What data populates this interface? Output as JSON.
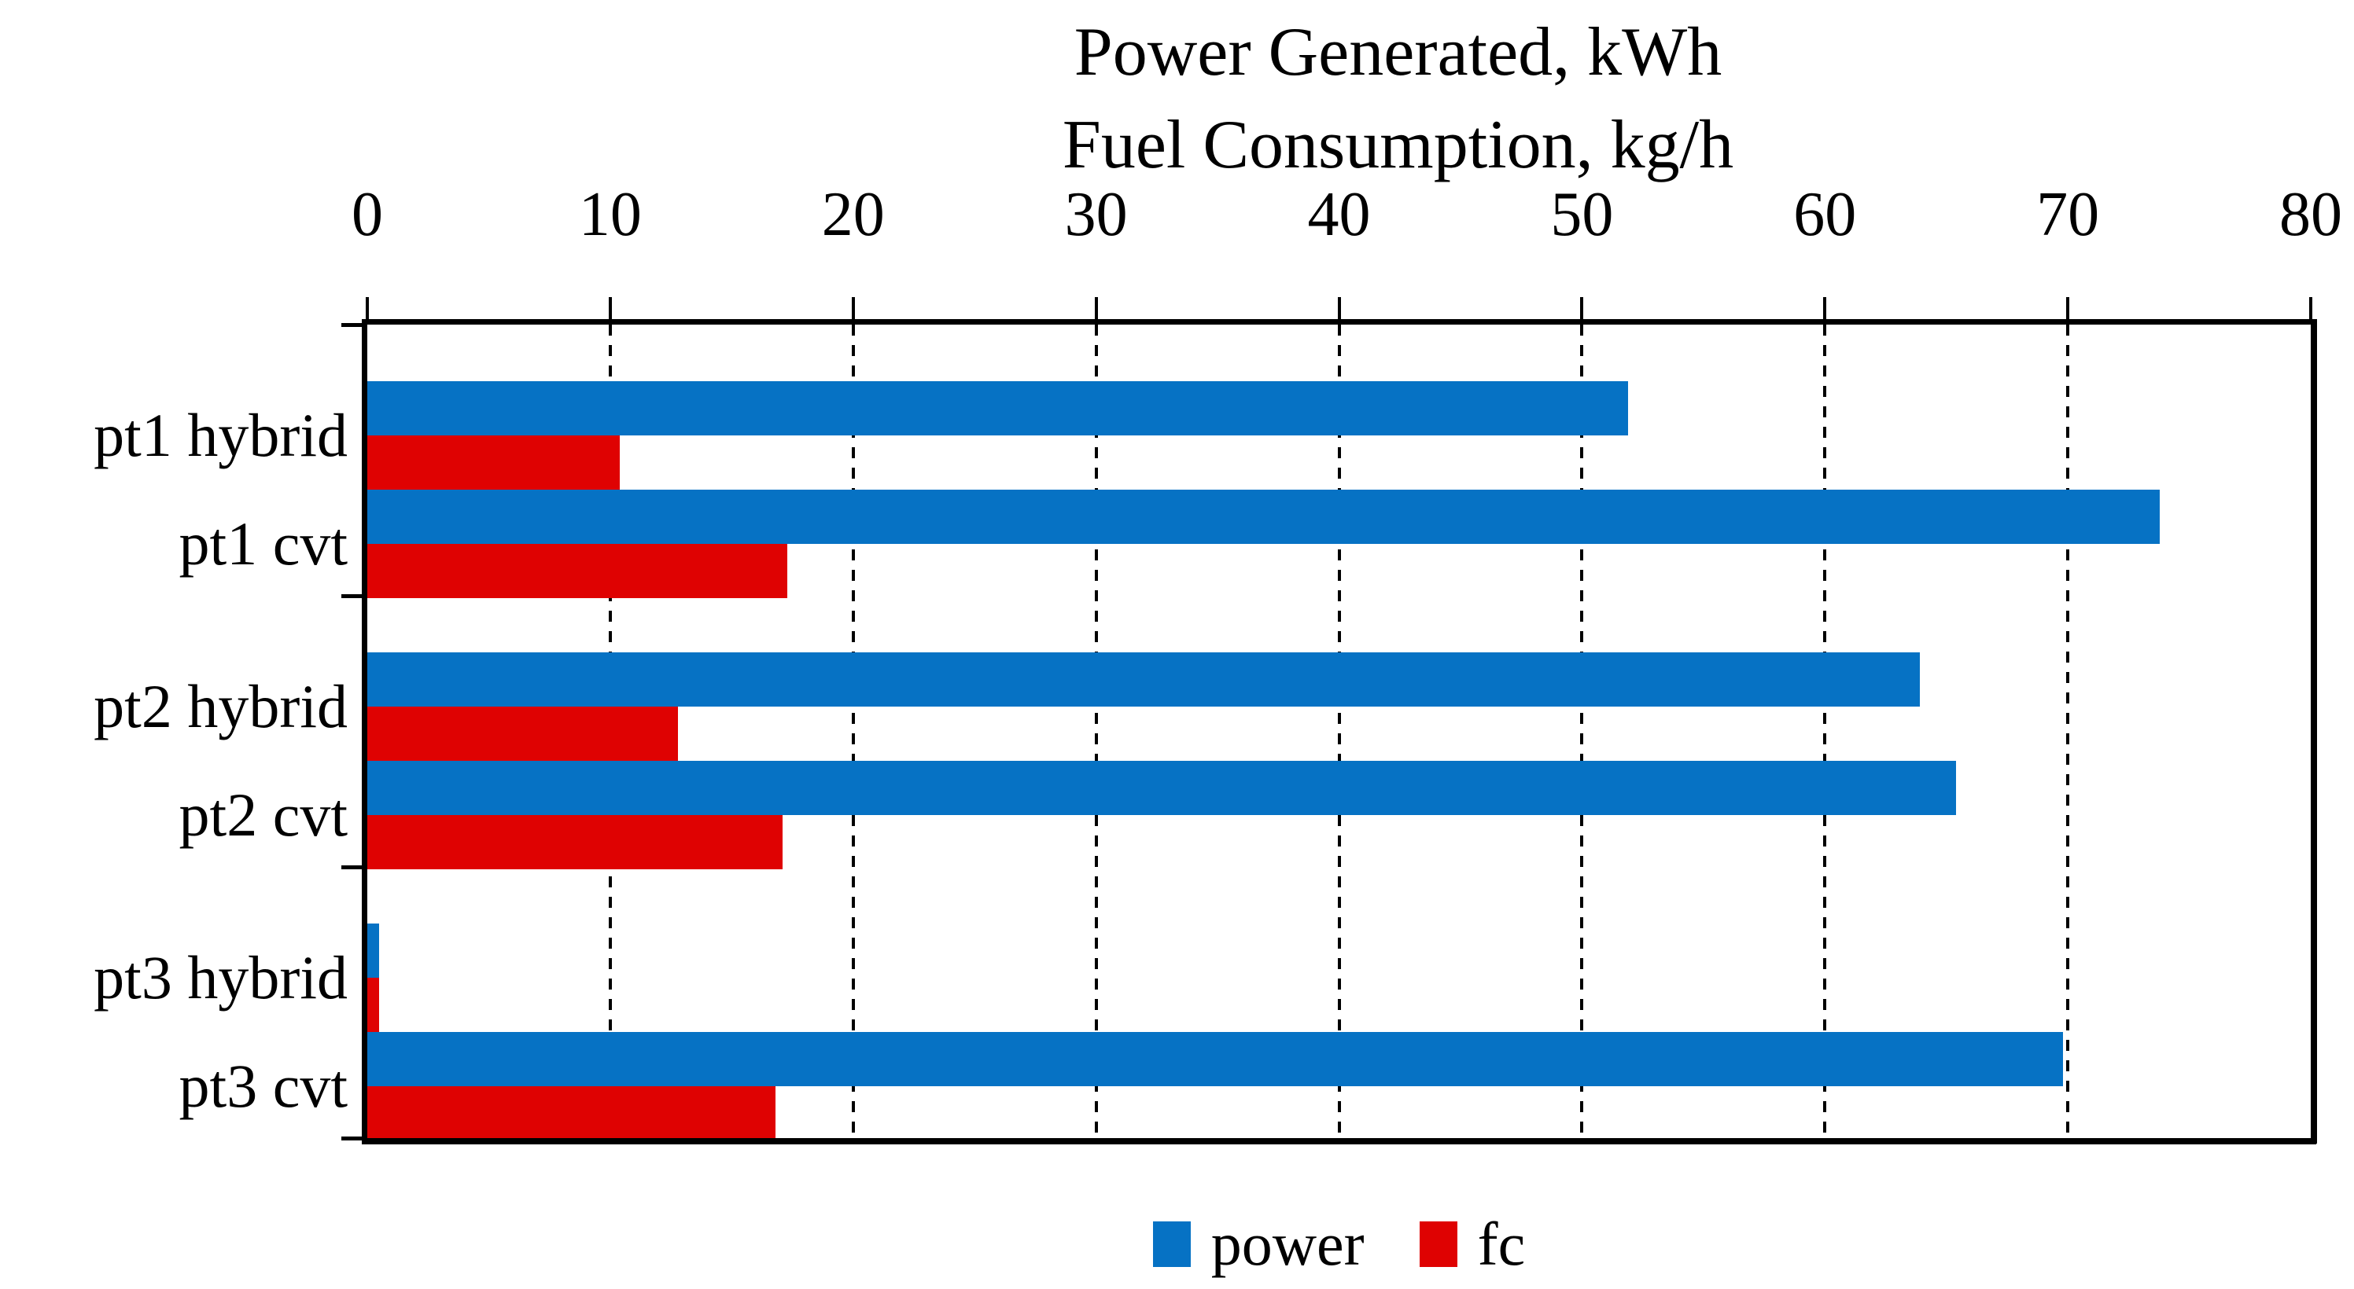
{
  "title": {
    "line1": "Power Generated, kWh",
    "line2": "Fuel Consumption, kg/h"
  },
  "legend": {
    "items": [
      {
        "label": "power",
        "color": "#0672C4"
      },
      {
        "label": "fc",
        "color": "#DF0202"
      }
    ]
  },
  "chart_data": {
    "type": "bar",
    "orientation": "horizontal",
    "title": "Power Generated, kWh",
    "subtitle": "Fuel Consumption, kg/h",
    "categories": [
      "pt1 hybrid",
      "pt1 cvt",
      "pt2 hybrid",
      "pt2 cvt",
      "pt3 hybrid",
      "pt3 cvt"
    ],
    "series": [
      {
        "name": "power",
        "color": "#0672C4",
        "values": [
          51.9,
          73.8,
          63.9,
          65.4,
          0.5,
          69.8
        ]
      },
      {
        "name": "fc",
        "color": "#DF0202",
        "values": [
          10.4,
          17.3,
          12.8,
          17.1,
          0.5,
          16.8
        ]
      }
    ],
    "xlim": [
      0,
      80
    ],
    "xticks": [
      0,
      10,
      20,
      30,
      40,
      50,
      60,
      70,
      80
    ],
    "grid": "vertical-dashed",
    "legend_position": "bottom"
  }
}
